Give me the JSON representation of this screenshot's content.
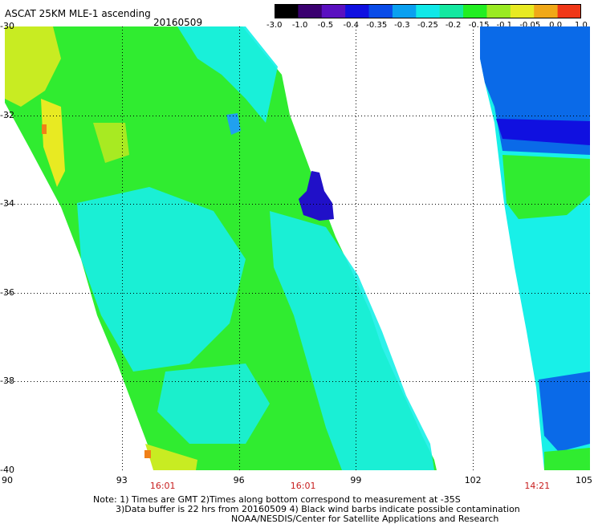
{
  "title": "ASCAT 25KM MLE-1 ascending",
  "date": "20160509",
  "colorbar": {
    "labels": [
      "-3.0",
      "-1.0",
      "-0.5",
      "-0.4",
      "-0.35",
      "-0.3",
      "-0.25",
      "-0.2",
      "-0.15",
      "-0.1",
      "-0.05",
      "0.0",
      "1.0"
    ],
    "colors": [
      "#000000",
      "#3a0070",
      "#5a10c0",
      "#1010e0",
      "#0a4ce8",
      "#0aa0f0",
      "#10e8e8",
      "#14e8a0",
      "#22ee22",
      "#9aea22",
      "#e8ea22",
      "#f0a818",
      "#f03818"
    ]
  },
  "axes": {
    "y_labels": [
      "-30",
      "-32",
      "-34",
      "-36",
      "-38",
      "-40"
    ],
    "x_labels": [
      "90",
      "93",
      "96",
      "99",
      "102",
      "105"
    ]
  },
  "times": [
    "16:01",
    "16:01",
    "14:21"
  ],
  "note": {
    "line1": "Note: 1) Times are GMT 2)Times along bottom correspond to measurement at -35S",
    "line2": "3)Data buffer is 22 hrs from 20160509 4) Black wind barbs indicate possible contamination",
    "line3": "NOAA/NESDIS/Center for Satellite Applications and Research"
  }
}
